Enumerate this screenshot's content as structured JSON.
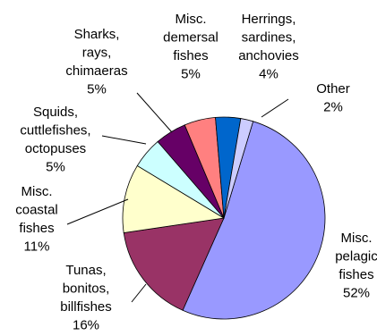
{
  "chart_data": {
    "type": "pie",
    "title": "",
    "unit": "%",
    "start_angle_deg": 16.8,
    "direction": "clockwise",
    "slices": [
      {
        "label": [
          "Misc.",
          "pelagic",
          "fishes"
        ],
        "value": 52,
        "pct_label": "52%",
        "color": "#9999ff"
      },
      {
        "label": [
          "Tunas,",
          "bonitos,",
          "billfishes"
        ],
        "value": 16,
        "pct_label": "16%",
        "color": "#993366"
      },
      {
        "label": [
          "Misc.",
          "coastal",
          "fishes"
        ],
        "value": 11,
        "pct_label": "11%",
        "color": "#ffffcc"
      },
      {
        "label": [
          "Squids,",
          "cuttlefishes,",
          "octopuses"
        ],
        "value": 5,
        "pct_label": "5%",
        "color": "#ccffff"
      },
      {
        "label": [
          "Sharks,",
          "rays,",
          "chimaeras"
        ],
        "value": 5,
        "pct_label": "5%",
        "color": "#660066"
      },
      {
        "label": [
          "Misc.",
          "demersal",
          "fishes"
        ],
        "value": 5,
        "pct_label": "5%",
        "color": "#ff8080"
      },
      {
        "label": [
          "Herrings,",
          "sardines,",
          "anchovies"
        ],
        "value": 4,
        "pct_label": "4%",
        "color": "#0066cc"
      },
      {
        "label": [
          "Other"
        ],
        "value": 2,
        "pct_label": "2%",
        "color": "#ccccff"
      }
    ]
  }
}
